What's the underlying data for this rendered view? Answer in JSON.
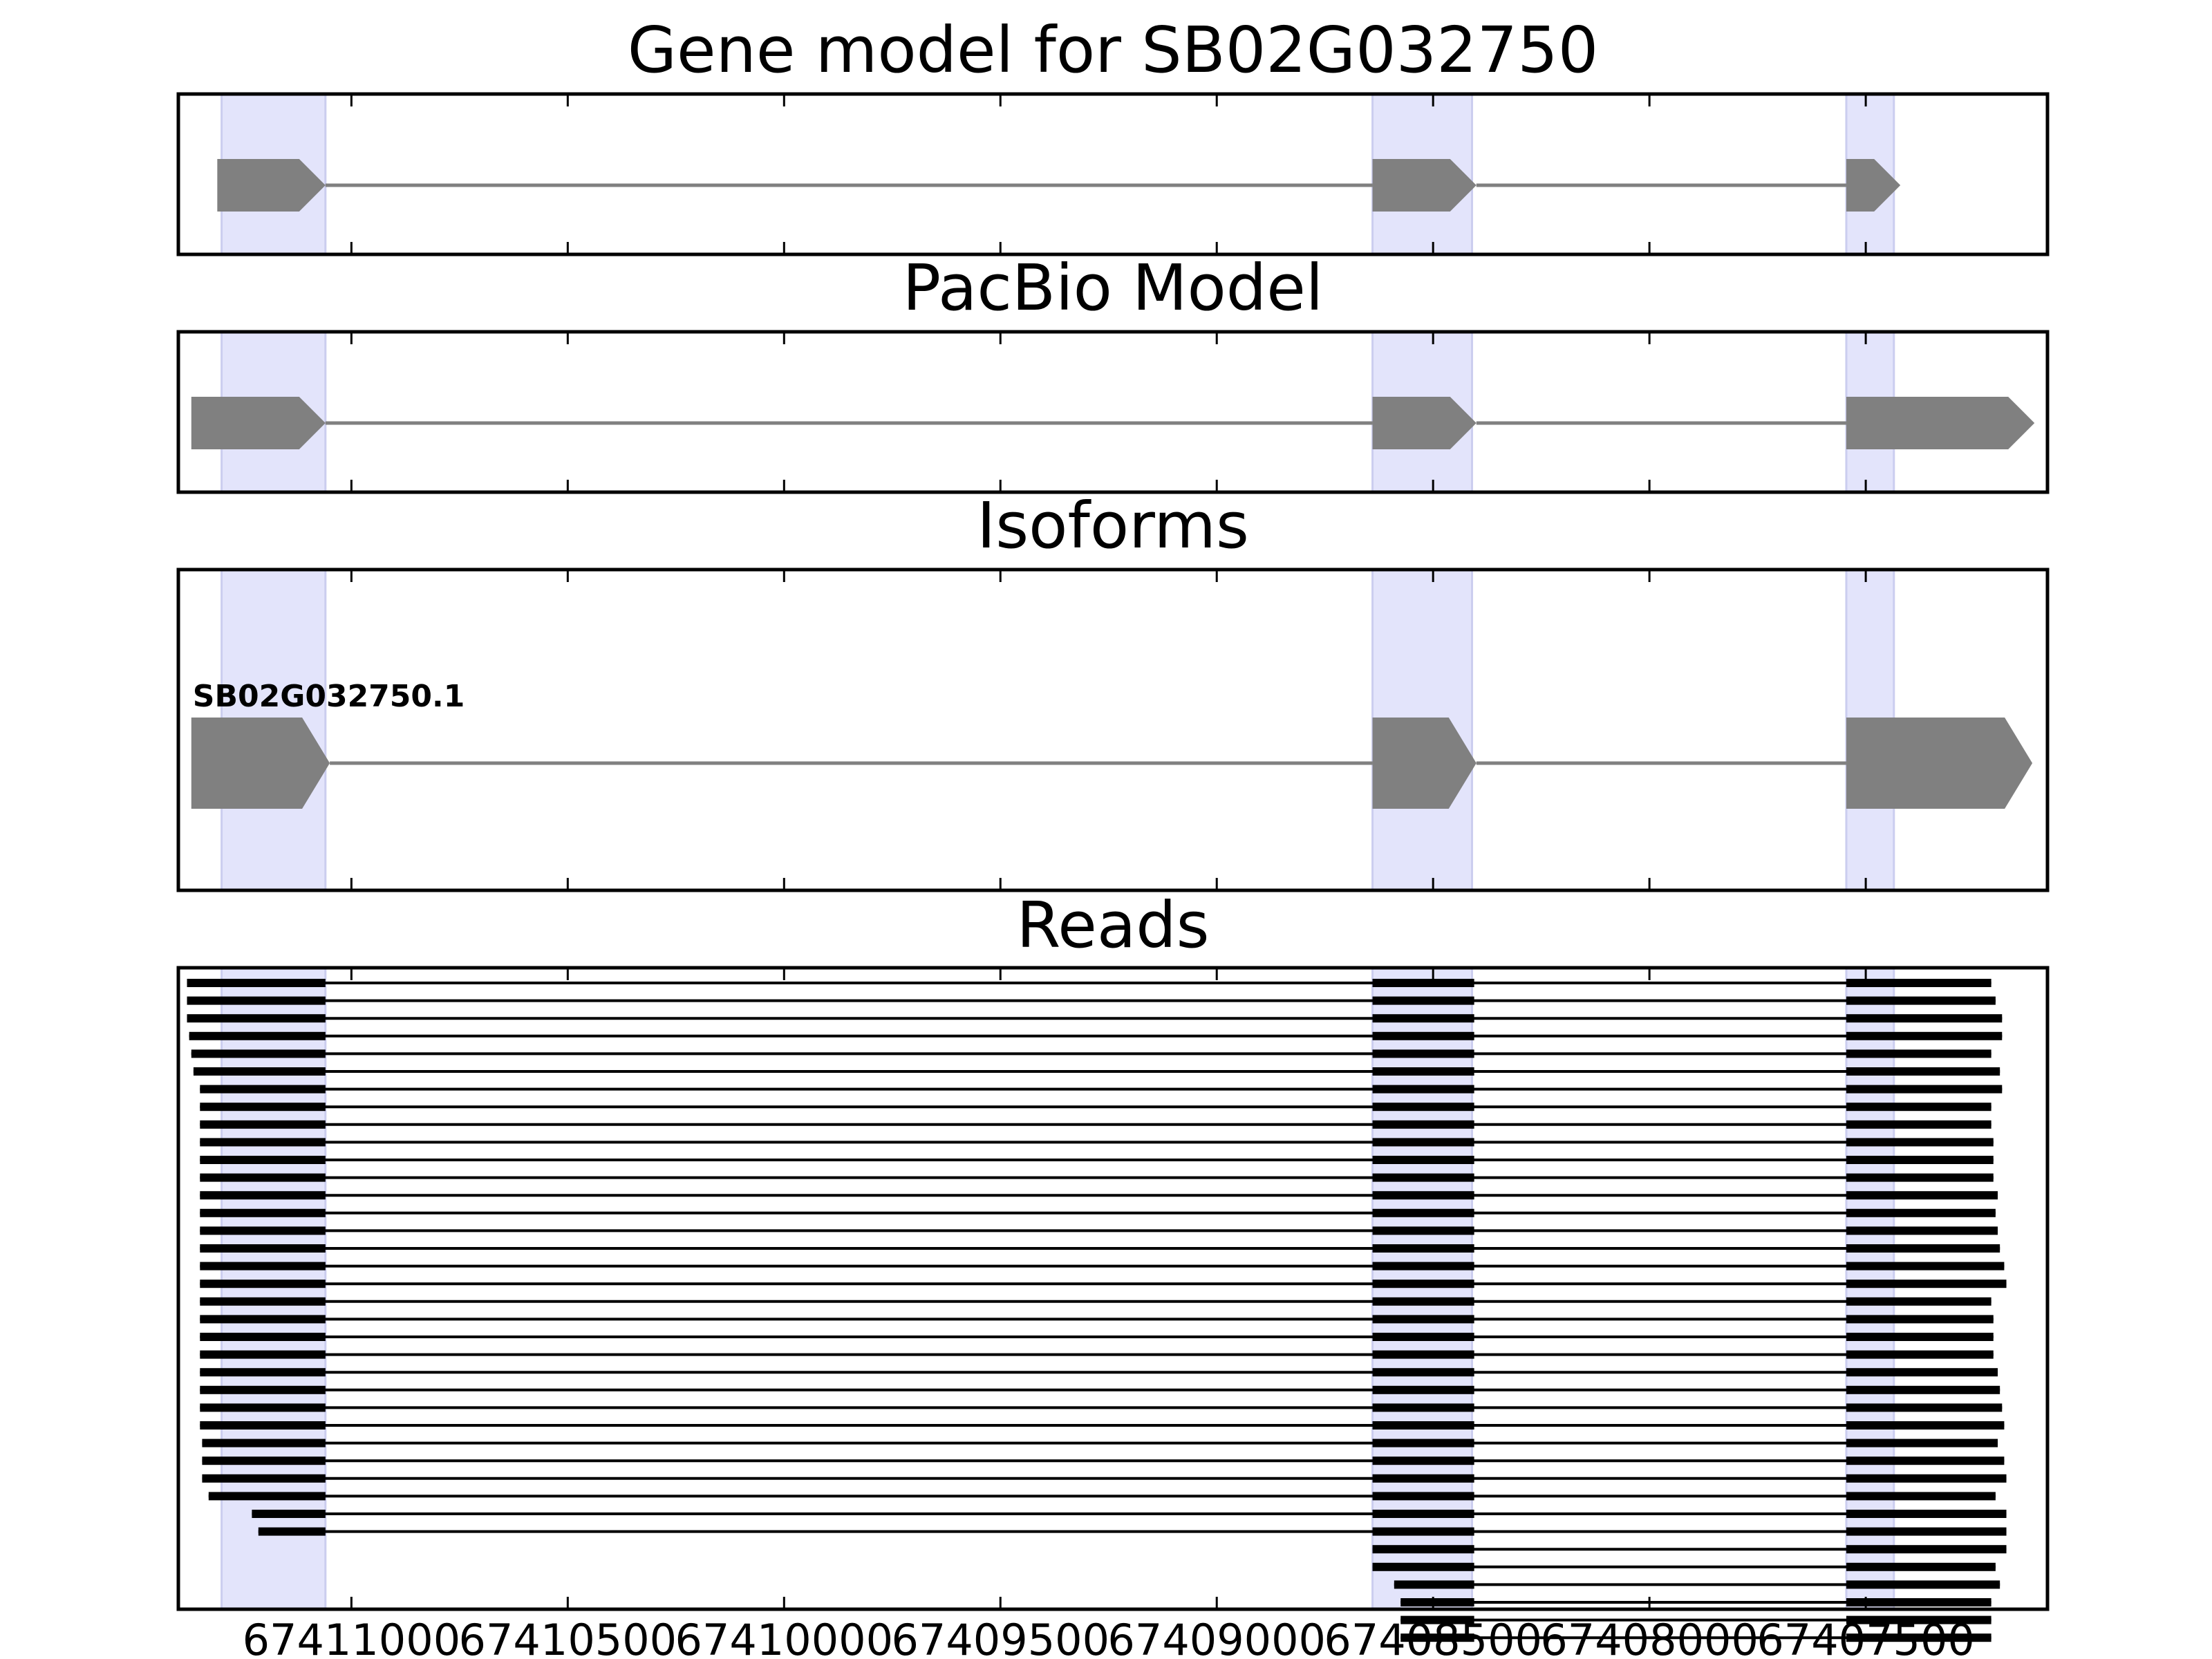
{
  "colors": {
    "exon_fill": "#808080",
    "intron_line": "#808080",
    "read_color": "#000000",
    "highlight_fill": "#e3e4fb",
    "highlight_edge": "#cbcdef",
    "frame": "#000000",
    "background": "#ffffff"
  },
  "chart_data": {
    "type": "gene-track",
    "x_axis": {
      "inverted": true,
      "xlim": [
        67411400,
        67407080
      ],
      "ticks": [
        67411000,
        67410500,
        67410000,
        67409500,
        67409000,
        67408500,
        67408000,
        67407500
      ],
      "tick_labels": [
        "67411000",
        "67410500",
        "67410000",
        "67409500",
        "67409000",
        "67408500",
        "67408000",
        "67407500"
      ]
    },
    "highlight_regions": [
      [
        67411300,
        67411060
      ],
      [
        67408640,
        67408410
      ],
      [
        67407545,
        67407435
      ]
    ],
    "panels": [
      {
        "id": "gene-model",
        "title": "Gene model for SB02G032750",
        "kind": "model",
        "exons": [
          [
            67411310,
            67411060
          ],
          [
            67408640,
            67408400
          ],
          [
            67407545,
            67407420
          ]
        ]
      },
      {
        "id": "pacbio-model",
        "title": "PacBio Model",
        "kind": "model",
        "exons": [
          [
            67411370,
            67411060
          ],
          [
            67408640,
            67408400
          ],
          [
            67407545,
            67407110
          ]
        ]
      },
      {
        "id": "isoforms",
        "title": "Isoforms",
        "kind": "isoform",
        "isoform_label": "SB02G032750.1",
        "exons": [
          [
            67411370,
            67411050
          ],
          [
            67408640,
            67408400
          ],
          [
            67407545,
            67407115
          ]
        ]
      },
      {
        "id": "reads",
        "title": "Reads",
        "kind": "reads",
        "shared_exons": [
          [
            67411060,
            67408640,
            67408405,
            67407545
          ]
        ],
        "reads": [
          [
            67411380,
            67407210
          ],
          [
            67411380,
            67407200
          ],
          [
            67411380,
            67407185
          ],
          [
            67411375,
            67407185
          ],
          [
            67411370,
            67407210
          ],
          [
            67411365,
            67407190
          ],
          [
            67411350,
            67407185
          ],
          [
            67411350,
            67407210
          ],
          [
            67411350,
            67407210
          ],
          [
            67411350,
            67407205
          ],
          [
            67411350,
            67407205
          ],
          [
            67411350,
            67407205
          ],
          [
            67411350,
            67407195
          ],
          [
            67411350,
            67407200
          ],
          [
            67411350,
            67407195
          ],
          [
            67411350,
            67407190
          ],
          [
            67411350,
            67407180
          ],
          [
            67411350,
            67407175
          ],
          [
            67411350,
            67407210
          ],
          [
            67411350,
            67407205
          ],
          [
            67411350,
            67407205
          ],
          [
            67411350,
            67407205
          ],
          [
            67411350,
            67407195
          ],
          [
            67411350,
            67407190
          ],
          [
            67411350,
            67407185
          ],
          [
            67411350,
            67407180
          ],
          [
            67411345,
            67407195
          ],
          [
            67411345,
            67407180
          ],
          [
            67411345,
            67407175
          ],
          [
            67411330,
            67407200
          ],
          [
            67411230,
            67407175
          ],
          [
            67411215,
            67407175
          ],
          [
            null,
            67407175,
            67408640
          ],
          [
            null,
            67407200,
            67408640
          ],
          [
            null,
            67407190,
            67408590
          ],
          [
            null,
            67407210,
            67408575
          ],
          [
            null,
            67407210,
            67408575
          ],
          [
            null,
            67407210,
            67408575
          ]
        ]
      }
    ]
  }
}
